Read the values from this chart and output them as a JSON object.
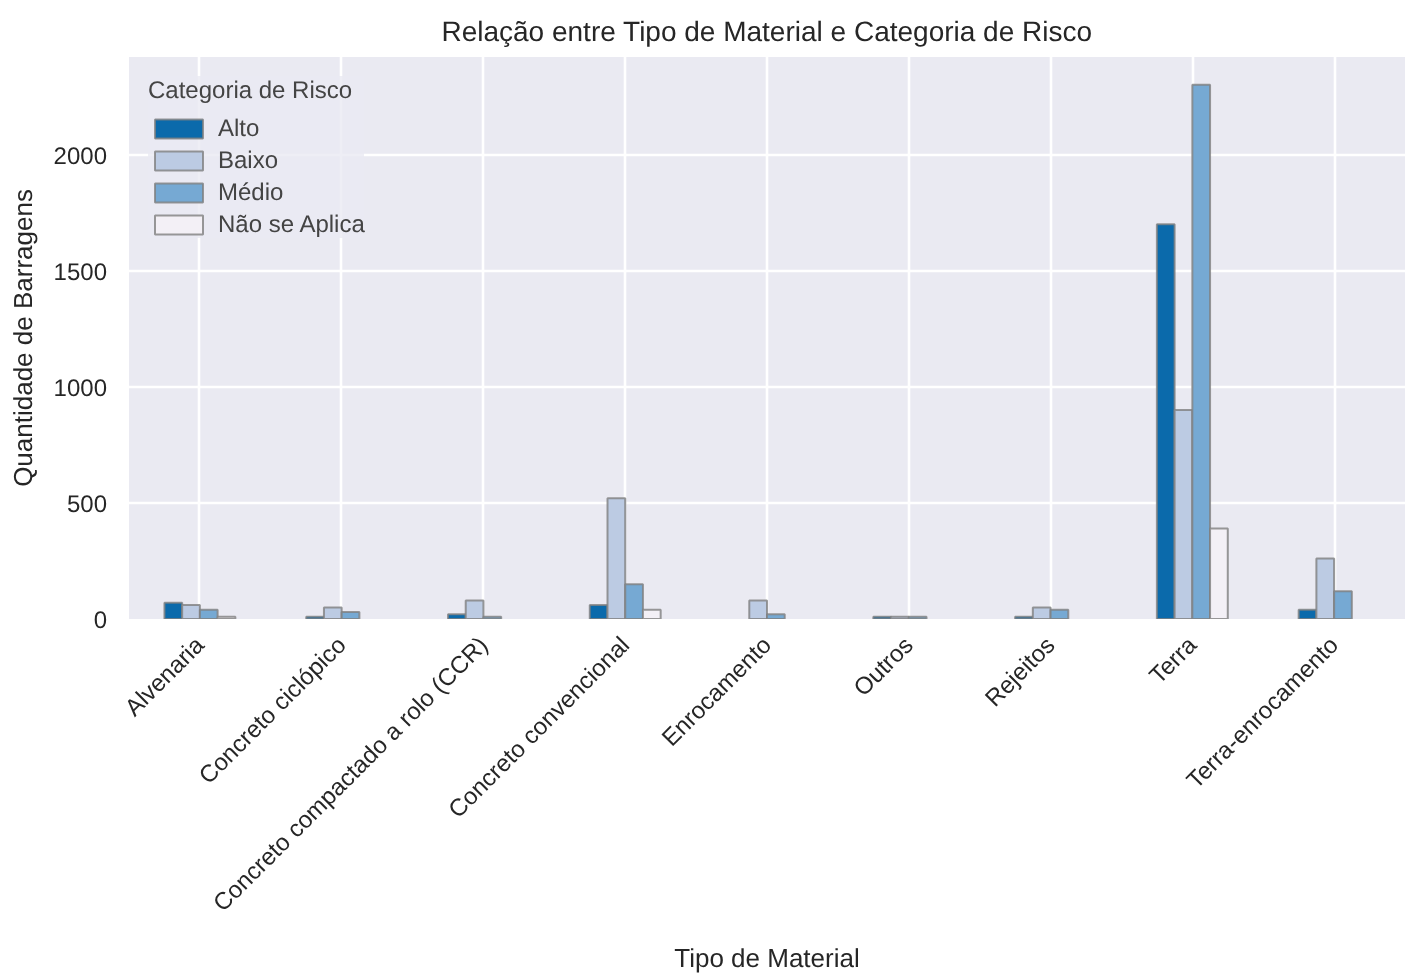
{
  "chart_data": {
    "type": "bar",
    "title": "Relação entre Tipo de Material e Categoria de Risco",
    "xlabel": "Tipo de Material",
    "ylabel": "Quantidade de Barragens",
    "legend_title": "Categoria de Risco",
    "categories": [
      "Alvenaria",
      "Concreto ciclópico",
      "Concreto compactado a rolo (CCR)",
      "Concreto convencional",
      "Enrocamento",
      "Outros",
      "Rejeitos",
      "Terra",
      "Terra-enrocamento"
    ],
    "series": [
      {
        "name": "Alto",
        "color": "#0b6aab",
        "values": [
          70,
          10,
          20,
          60,
          0,
          10,
          10,
          1700,
          40
        ]
      },
      {
        "name": "Baixo",
        "color": "#bccbe3",
        "values": [
          60,
          50,
          80,
          520,
          80,
          10,
          50,
          900,
          260
        ]
      },
      {
        "name": "Médio",
        "color": "#76a9d3",
        "values": [
          40,
          30,
          10,
          150,
          20,
          10,
          40,
          2300,
          120
        ]
      },
      {
        "name": "Não se Aplica",
        "color": "#f3f0f6",
        "values": [
          10,
          0,
          0,
          40,
          0,
          0,
          0,
          390,
          0
        ]
      }
    ],
    "ylim": [
      0,
      2420
    ],
    "yticks": [
      0,
      500,
      1000,
      1500,
      2000
    ],
    "grid": true,
    "legend": "top left"
  }
}
